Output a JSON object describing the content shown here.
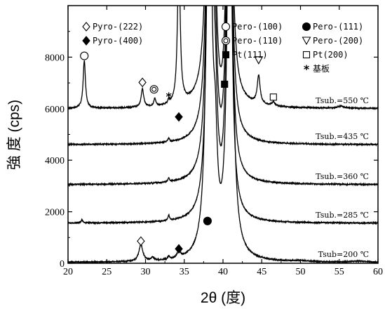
{
  "chart_data": {
    "type": "line",
    "xlabel": "2θ (度)",
    "ylabel": "強 度 (cps)",
    "xlim": [
      20,
      60
    ],
    "ylim": [
      0,
      10000
    ],
    "xticks": [
      20,
      25,
      30,
      35,
      40,
      45,
      50,
      55,
      60
    ],
    "yticks": [
      0,
      2000,
      4000,
      6000,
      8000
    ],
    "grid": false,
    "line_color": "#000000",
    "legend": [
      {
        "marker": "diamond-open",
        "label": "Pyro-(222)"
      },
      {
        "marker": "diamond-filled",
        "label": "Pyro-(400)"
      },
      {
        "marker": "circle-open",
        "label": "Pero-(100)"
      },
      {
        "marker": "double-circle",
        "label": "Pero-(110)"
      },
      {
        "marker": "square-filled",
        "label": "Pt(111)"
      },
      {
        "marker": "circle-filled",
        "label": "Pero-(111)"
      },
      {
        "marker": "triangle-down-open",
        "label": "Pero-(200)"
      },
      {
        "marker": "square-open",
        "label": "Pt(200)"
      },
      {
        "marker": "asterisk",
        "label": "基板"
      }
    ],
    "series": [
      {
        "label": "Tsub.=550 ℃",
        "baseline": 6000,
        "peaks": [
          {
            "x": 22.1,
            "height": 1850,
            "width": 0.18
          },
          {
            "x": 29.6,
            "height": 700,
            "width": 0.2
          },
          {
            "x": 31.2,
            "height": 300,
            "width": 0.15
          },
          {
            "x": 33.0,
            "height": 150,
            "width": 0.12
          },
          {
            "x": 34.3,
            "height": 6000,
            "width": 0.2
          },
          {
            "x": 38.3,
            "height": 20000,
            "width": 0.35
          },
          {
            "x": 39.0,
            "height": 8000,
            "width": 0.3
          },
          {
            "x": 40.2,
            "height": 1200,
            "width": 0.4
          },
          {
            "x": 40.8,
            "height": 20000,
            "width": 0.3
          },
          {
            "x": 44.6,
            "height": 1100,
            "width": 0.22
          },
          {
            "x": 46.5,
            "height": 150,
            "width": 0.25
          },
          {
            "x": 55.2,
            "height": 80,
            "width": 0.5
          }
        ],
        "markers": [
          {
            "type": "circle-open",
            "x": 22.1,
            "y": 8050
          },
          {
            "type": "diamond-open",
            "x": 29.6,
            "y": 7020
          },
          {
            "type": "double-circle",
            "x": 31.1,
            "y": 6750
          },
          {
            "type": "asterisk",
            "x": 33.0,
            "y": 6480
          },
          {
            "type": "diamond-filled",
            "x": 34.3,
            "y": 5680
          },
          {
            "type": "square-filled",
            "x": 40.2,
            "y": 6950
          },
          {
            "type": "triangle-down-open",
            "x": 44.6,
            "y": 7880
          },
          {
            "type": "square-open",
            "x": 46.5,
            "y": 6450
          }
        ]
      },
      {
        "label": "Tsub.=435 ℃",
        "baseline": 4600,
        "peaks": [
          {
            "x": 33.0,
            "height": 150,
            "width": 0.12
          },
          {
            "x": 38.3,
            "height": 20000,
            "width": 0.35
          },
          {
            "x": 39.0,
            "height": 3000,
            "width": 0.3
          },
          {
            "x": 40.8,
            "height": 20000,
            "width": 0.3
          }
        ],
        "markers": []
      },
      {
        "label": "Tsub.=360 ℃",
        "baseline": 3050,
        "peaks": [
          {
            "x": 33.0,
            "height": 150,
            "width": 0.12
          },
          {
            "x": 38.3,
            "height": 20000,
            "width": 0.35
          },
          {
            "x": 39.0,
            "height": 3000,
            "width": 0.3
          },
          {
            "x": 40.8,
            "height": 20000,
            "width": 0.3
          }
        ],
        "markers": []
      },
      {
        "label": "Tsub.=285 ℃",
        "baseline": 1550,
        "peaks": [
          {
            "x": 21.8,
            "height": 120,
            "width": 0.15
          },
          {
            "x": 33.0,
            "height": 200,
            "width": 0.12
          },
          {
            "x": 38.3,
            "height": 20000,
            "width": 0.35
          },
          {
            "x": 39.0,
            "height": 3000,
            "width": 0.3
          },
          {
            "x": 40.8,
            "height": 20000,
            "width": 0.3
          }
        ],
        "markers": []
      },
      {
        "label": "Tsub=200 ℃",
        "baseline": 30,
        "peaks": [
          {
            "x": 29.4,
            "height": 650,
            "width": 0.3
          },
          {
            "x": 30.9,
            "height": 120,
            "width": 0.2
          },
          {
            "x": 33.0,
            "height": 120,
            "width": 0.12
          },
          {
            "x": 34.3,
            "height": 250,
            "width": 0.25
          },
          {
            "x": 38.2,
            "height": 20000,
            "width": 0.35
          },
          {
            "x": 39.0,
            "height": 3000,
            "width": 0.3
          },
          {
            "x": 40.9,
            "height": 20000,
            "width": 0.35
          },
          {
            "x": 50.0,
            "height": 40,
            "width": 1.0
          },
          {
            "x": 57.5,
            "height": 40,
            "width": 1.0
          }
        ],
        "markers": [
          {
            "type": "diamond-open",
            "x": 29.4,
            "y": 860
          },
          {
            "type": "diamond-filled",
            "x": 34.3,
            "y": 560
          },
          {
            "type": "circle-filled",
            "x": 38.0,
            "y": 1640
          }
        ]
      }
    ]
  }
}
